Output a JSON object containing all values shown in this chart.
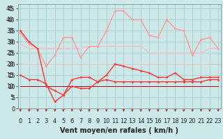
{
  "x": [
    0,
    1,
    2,
    3,
    4,
    5,
    6,
    7,
    8,
    9,
    10,
    11,
    12,
    13,
    14,
    15,
    16,
    17,
    18,
    19,
    20,
    21,
    22,
    23
  ],
  "series_dark": {
    "s1": [
      35,
      30,
      27,
      10,
      8,
      6,
      10,
      9,
      9,
      12,
      15,
      20,
      19,
      18,
      17,
      16,
      14,
      14,
      16,
      13,
      13,
      14,
      14,
      14
    ],
    "s2": [
      15,
      13,
      13,
      11,
      3,
      6,
      13,
      14,
      14,
      12,
      13,
      12,
      12,
      12,
      12,
      12,
      12,
      12,
      12,
      12,
      12,
      12,
      13,
      13
    ],
    "color": "#ff3333",
    "lw": 1.0,
    "ms": 2.0
  },
  "series_flat_dark": {
    "s3": [
      10,
      10,
      10,
      10,
      10,
      10,
      10,
      10,
      10,
      10,
      10,
      10,
      10,
      10,
      10,
      10,
      10,
      10,
      10,
      10,
      10,
      10,
      10,
      10
    ],
    "s4": [
      10,
      10,
      10,
      10,
      10,
      10,
      10,
      10,
      10,
      10,
      10,
      10,
      10,
      10,
      10,
      10,
      10,
      10,
      10,
      10,
      10,
      10,
      10,
      10
    ],
    "color": "#bb0000",
    "lw": 0.7
  },
  "series_light": {
    "s5": [
      34,
      29,
      27,
      19,
      24,
      32,
      32,
      23,
      28,
      28,
      35,
      44,
      44,
      40,
      40,
      33,
      32,
      40,
      36,
      35,
      24,
      31,
      32,
      27
    ],
    "color": "#ff9999",
    "lw": 1.0,
    "ms": 2.0
  },
  "series_flat_light": {
    "s6": [
      29,
      27,
      27,
      27,
      27,
      27,
      27,
      27,
      28,
      28,
      28,
      28,
      28,
      28,
      28,
      25,
      25,
      25,
      25,
      25,
      25,
      25,
      27,
      27
    ],
    "s7": [
      29,
      27,
      27,
      27,
      27,
      27,
      27,
      27,
      28,
      28,
      28,
      28,
      28,
      28,
      28,
      25,
      25,
      25,
      25,
      25,
      25,
      25,
      27,
      27
    ],
    "s8": [
      20,
      20,
      20,
      20,
      20,
      20,
      20,
      20,
      20,
      20,
      20,
      20,
      20,
      20,
      20,
      20,
      20,
      20,
      20,
      20,
      20,
      20,
      20,
      20
    ],
    "color": "#ffbbbb",
    "lw": 0.7
  },
  "yticks": [
    0,
    5,
    10,
    15,
    20,
    25,
    30,
    35,
    40,
    45
  ],
  "xticks": [
    0,
    1,
    2,
    3,
    4,
    5,
    6,
    7,
    8,
    9,
    10,
    11,
    12,
    13,
    14,
    15,
    16,
    17,
    18,
    19,
    20,
    21,
    22,
    23
  ],
  "xlabel": "Vent moyen/en rafales ( km/h )",
  "ylim": [
    0,
    47
  ],
  "xlim": [
    -0.3,
    23.3
  ],
  "bg_color": "#cce8e8",
  "grid_color": "#aacccc",
  "arrow_color": "#cc2222",
  "tick_fontsize": 6,
  "label_fontsize": 7
}
